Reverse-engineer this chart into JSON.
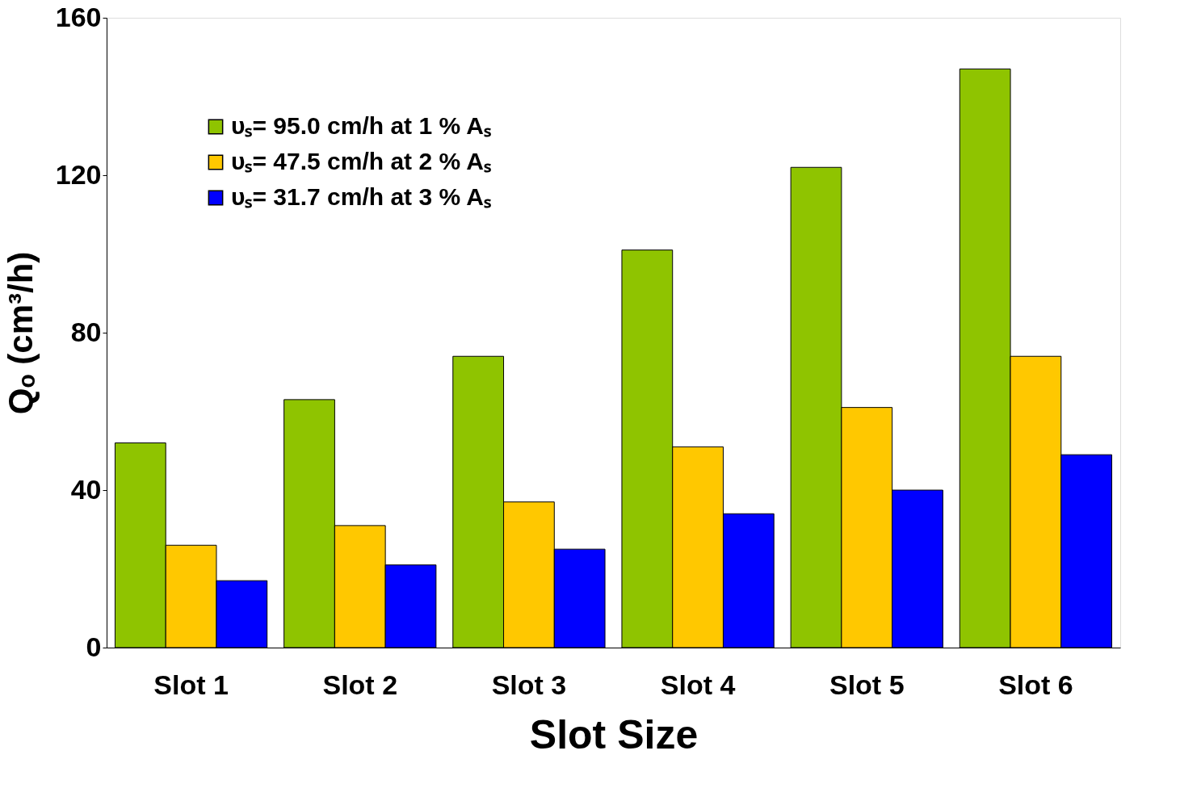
{
  "chart_data": {
    "type": "bar",
    "xlabel": "Slot Size",
    "ylabel": "Qₒ (cm³/h)",
    "categories": [
      "Slot 1",
      "Slot 2",
      "Slot 3",
      "Slot 4",
      "Slot 5",
      "Slot 6"
    ],
    "series": [
      {
        "name": "υₛ= 95.0 cm/h at 1 % Aₛ",
        "color": "#8fc400",
        "values": [
          52,
          63,
          74,
          101,
          122,
          147
        ]
      },
      {
        "name": "υₛ= 47.5 cm/h at 2 % Aₛ",
        "color": "#ffc800",
        "values": [
          26,
          31,
          37,
          51,
          61,
          74
        ]
      },
      {
        "name": "υₛ= 31.7 cm/h at 3 % Aₛ",
        "color": "#0000ff",
        "values": [
          17,
          21,
          25,
          34,
          40,
          49
        ]
      }
    ],
    "ylim": [
      0,
      160
    ],
    "yticks": [
      0,
      40,
      80,
      120,
      160
    ],
    "grid": false,
    "legend": "top left"
  }
}
